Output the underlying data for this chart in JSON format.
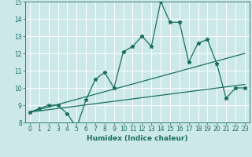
{
  "xlabel": "Humidex (Indice chaleur)",
  "xlim": [
    -0.5,
    23.5
  ],
  "ylim": [
    8,
    15
  ],
  "xticks": [
    0,
    1,
    2,
    3,
    4,
    5,
    6,
    7,
    8,
    9,
    10,
    11,
    12,
    13,
    14,
    15,
    16,
    17,
    18,
    19,
    20,
    21,
    22,
    23
  ],
  "yticks": [
    8,
    9,
    10,
    11,
    12,
    13,
    14,
    15
  ],
  "bg_color": "#cce8e8",
  "line_color": "#1a7060",
  "grid_color": "#ffffff",
  "zigzag_x": [
    0,
    1,
    2,
    3,
    4,
    5,
    6,
    7,
    8,
    9,
    10,
    11,
    12,
    13,
    14,
    15,
    16,
    17,
    18,
    19,
    20,
    21,
    22,
    23
  ],
  "zigzag_y": [
    8.6,
    8.8,
    9.0,
    9.0,
    8.5,
    7.7,
    9.3,
    10.5,
    10.9,
    10.0,
    12.1,
    12.4,
    13.0,
    12.4,
    15.0,
    13.8,
    13.8,
    11.5,
    12.6,
    12.8,
    11.4,
    9.4,
    10.0,
    10.0
  ],
  "trend1_x": [
    0,
    23
  ],
  "trend1_y": [
    8.6,
    12.0
  ],
  "trend2_x": [
    0,
    23
  ],
  "trend2_y": [
    8.6,
    10.2
  ]
}
